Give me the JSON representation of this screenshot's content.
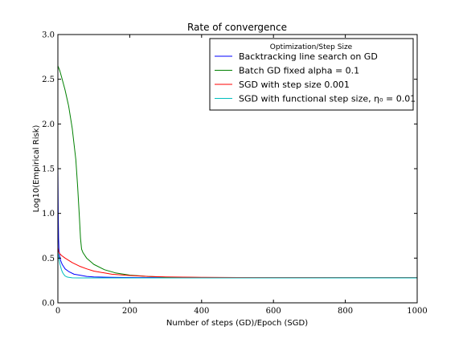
{
  "chart_data": {
    "type": "line",
    "title": "Rate of convergence",
    "xlabel": "Number of steps (GD)/Epoch (SGD)",
    "ylabel": "Log10(Empirical Risk)",
    "xlim": [
      0,
      1000
    ],
    "ylim": [
      0.0,
      3.0
    ],
    "x_ticks": [
      "0",
      "200",
      "400",
      "600",
      "800",
      "1000"
    ],
    "y_ticks": [
      "0.0",
      "0.5",
      "1.0",
      "1.5",
      "2.0",
      "2.5",
      "3.0"
    ],
    "grid": false,
    "legend": {
      "title": "Optimization/Step Size",
      "placement": "top-right"
    },
    "series": [
      {
        "name": "Backtracking line search on GD",
        "color": "#0000ff",
        "x": [
          0,
          1,
          2,
          3,
          5,
          8,
          12,
          20,
          30,
          45,
          60,
          80,
          100,
          150,
          200,
          300,
          400,
          600,
          800,
          1000
        ],
        "y": [
          1.55,
          1.0,
          0.72,
          0.6,
          0.52,
          0.47,
          0.43,
          0.38,
          0.35,
          0.32,
          0.31,
          0.295,
          0.29,
          0.285,
          0.283,
          0.282,
          0.281,
          0.281,
          0.281,
          0.281
        ]
      },
      {
        "name": "Batch GD fixed alpha = 0.1",
        "color": "#008000",
        "x": [
          0,
          5,
          10,
          20,
          30,
          40,
          50,
          55,
          60,
          63,
          66,
          70,
          80,
          100,
          130,
          160,
          200,
          250,
          300,
          400,
          500,
          600,
          800,
          1000
        ],
        "y": [
          2.65,
          2.6,
          2.53,
          2.38,
          2.2,
          1.95,
          1.6,
          1.3,
          0.95,
          0.72,
          0.6,
          0.56,
          0.5,
          0.43,
          0.37,
          0.335,
          0.31,
          0.295,
          0.288,
          0.283,
          0.281,
          0.281,
          0.281,
          0.281
        ]
      },
      {
        "name": "SGD with step size 0.001",
        "color": "#ff0000",
        "x": [
          0,
          2,
          5,
          10,
          20,
          40,
          60,
          80,
          100,
          150,
          200,
          250,
          300,
          400,
          500,
          600,
          800,
          1000
        ],
        "y": [
          0.62,
          0.57,
          0.55,
          0.53,
          0.5,
          0.45,
          0.41,
          0.38,
          0.355,
          0.32,
          0.305,
          0.295,
          0.29,
          0.285,
          0.283,
          0.282,
          0.281,
          0.281
        ]
      },
      {
        "name": "SGD with functional step size, η₀ = 0.01",
        "color": "#00bfbf",
        "x": [
          0,
          2,
          4,
          6,
          8,
          10,
          13,
          16,
          20,
          25,
          30,
          40,
          60,
          100,
          200,
          400,
          600,
          800,
          1000
        ],
        "y": [
          0.58,
          0.52,
          0.47,
          0.43,
          0.4,
          0.37,
          0.34,
          0.32,
          0.3,
          0.29,
          0.285,
          0.28,
          0.279,
          0.279,
          0.279,
          0.279,
          0.279,
          0.279,
          0.279
        ]
      }
    ]
  }
}
